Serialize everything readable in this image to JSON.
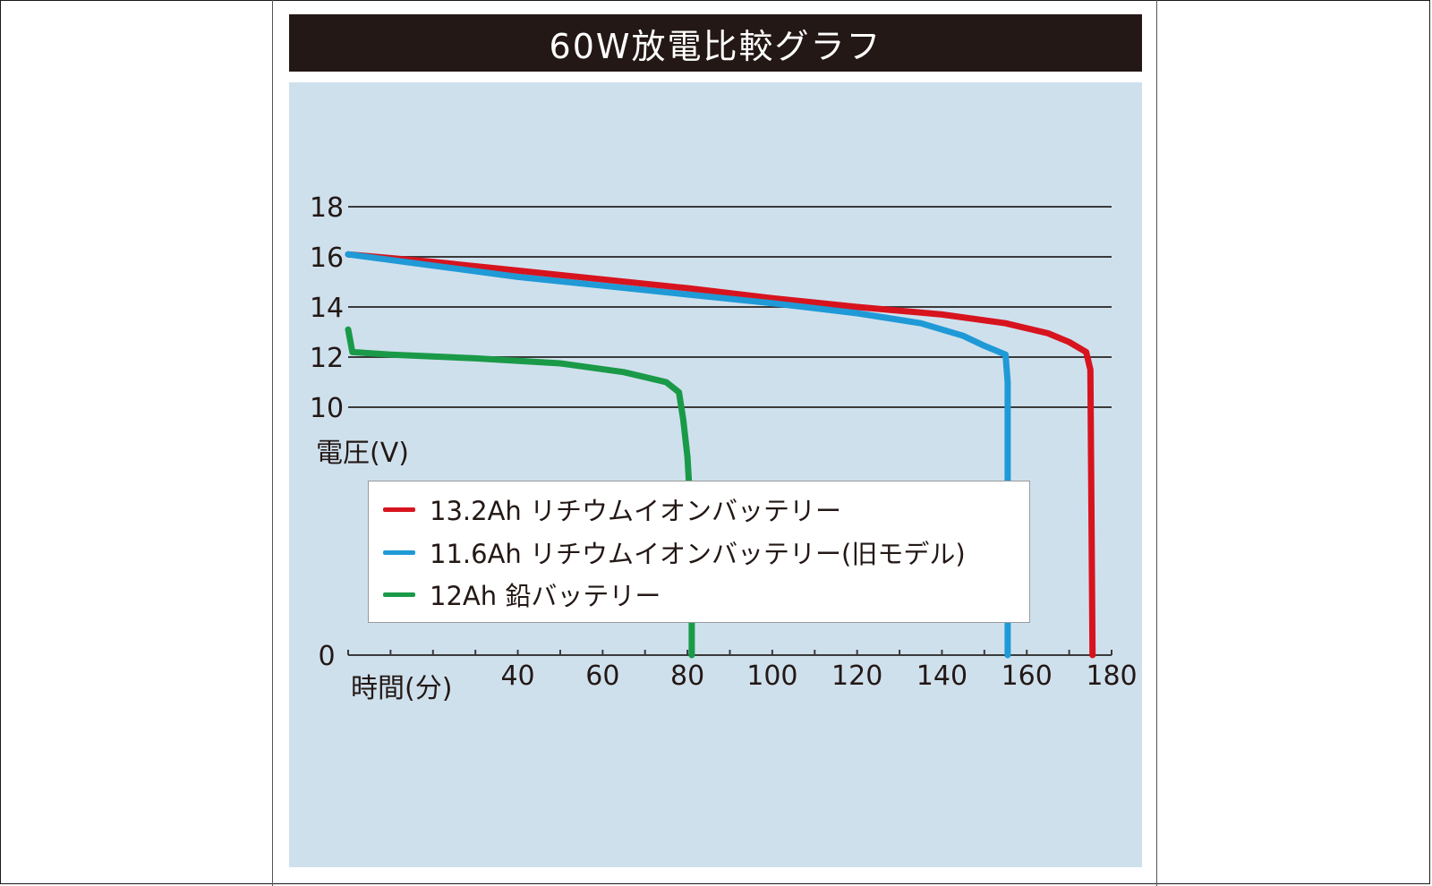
{
  "chart_data": {
    "type": "line",
    "title": "60W放電比較グラフ",
    "xlabel": "時間(分)",
    "ylabel": "電圧(V)",
    "xlim": [
      0,
      180
    ],
    "x_ticks": [
      40,
      60,
      80,
      100,
      120,
      140,
      160,
      180
    ],
    "y_ticks": [
      0,
      10,
      12,
      14,
      16,
      18
    ],
    "y_axis_break": [
      0,
      10
    ],
    "grid": true,
    "legend_position": "center",
    "series": [
      {
        "name": "13.2Ah リチウムイオンバッテリー",
        "color": "#d7141e",
        "points": [
          [
            0,
            16.1
          ],
          [
            20,
            15.8
          ],
          [
            40,
            15.45
          ],
          [
            60,
            15.1
          ],
          [
            80,
            14.75
          ],
          [
            100,
            14.35
          ],
          [
            120,
            14.0
          ],
          [
            140,
            13.7
          ],
          [
            155,
            13.35
          ],
          [
            165,
            12.95
          ],
          [
            170,
            12.6
          ],
          [
            174,
            12.2
          ],
          [
            175,
            11.5
          ],
          [
            175.5,
            0
          ]
        ]
      },
      {
        "name": "11.6Ah リチウムイオンバッテリー(旧モデル)",
        "color": "#1f9ad6",
        "points": [
          [
            0,
            16.1
          ],
          [
            20,
            15.65
          ],
          [
            40,
            15.2
          ],
          [
            60,
            14.85
          ],
          [
            80,
            14.5
          ],
          [
            100,
            14.15
          ],
          [
            120,
            13.75
          ],
          [
            135,
            13.35
          ],
          [
            145,
            12.85
          ],
          [
            150,
            12.45
          ],
          [
            155,
            12.1
          ],
          [
            155.5,
            11.0
          ],
          [
            155.5,
            0
          ]
        ]
      },
      {
        "name": "12Ah 鉛バッテリー",
        "color": "#1a9a48",
        "points": [
          [
            0,
            13.1
          ],
          [
            1,
            12.2
          ],
          [
            10,
            12.1
          ],
          [
            30,
            11.95
          ],
          [
            50,
            11.75
          ],
          [
            65,
            11.4
          ],
          [
            75,
            11.0
          ],
          [
            78,
            10.6
          ],
          [
            79,
            9.5
          ],
          [
            80,
            8.0
          ],
          [
            81,
            5.0
          ],
          [
            81,
            0
          ]
        ]
      }
    ]
  }
}
